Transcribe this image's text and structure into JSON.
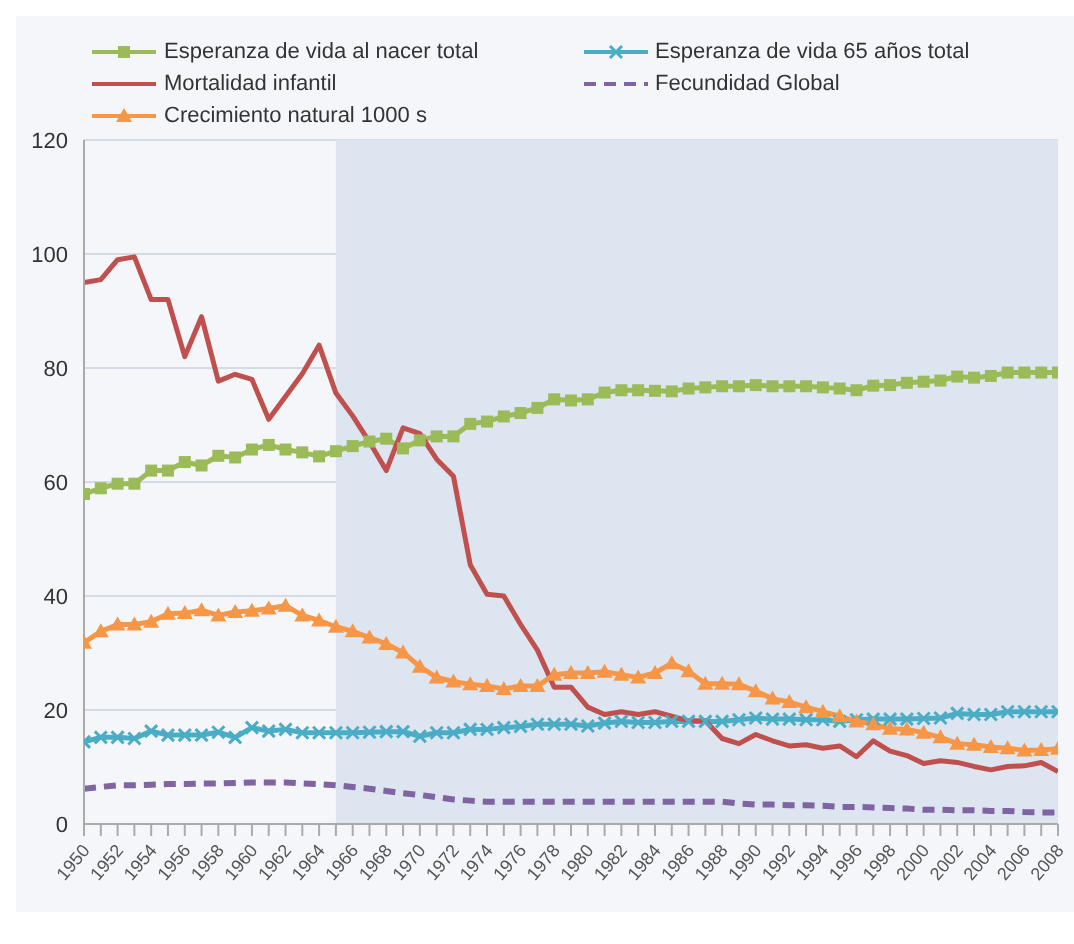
{
  "chart_data": {
    "type": "line",
    "x": [
      1950,
      1951,
      1952,
      1953,
      1954,
      1955,
      1956,
      1957,
      1958,
      1959,
      1960,
      1961,
      1962,
      1963,
      1964,
      1965,
      1966,
      1967,
      1968,
      1969,
      1970,
      1971,
      1972,
      1973,
      1974,
      1975,
      1976,
      1977,
      1978,
      1979,
      1980,
      1981,
      1982,
      1983,
      1984,
      1985,
      1986,
      1987,
      1988,
      1989,
      1990,
      1991,
      1992,
      1993,
      1994,
      1995,
      1996,
      1997,
      1998,
      1999,
      2000,
      2001,
      2002,
      2003,
      2004,
      2005,
      2006,
      2007,
      2008
    ],
    "series": [
      {
        "name": "Esperanza de vida al nacer total",
        "color": "#9bbb59",
        "marker": "square",
        "values": [
          57.9,
          58.9,
          59.7,
          59.7,
          62,
          62,
          63.5,
          62.9,
          64.6,
          64.3,
          65.7,
          66.5,
          65.7,
          65.2,
          64.5,
          65.4,
          66.3,
          67.1,
          67.6,
          65.9,
          67.3,
          68,
          68,
          70.2,
          70.6,
          71.5,
          72.1,
          73,
          74.5,
          74.3,
          74.5,
          75.7,
          76.1,
          76.1,
          76,
          75.9,
          76.4,
          76.6,
          76.8,
          76.8,
          77,
          76.8,
          76.8,
          76.8,
          76.6,
          76.4,
          76.1,
          76.9,
          77,
          77.4,
          77.6,
          77.8,
          78.5,
          78.3,
          78.6,
          79.2,
          79.2,
          79.2,
          79.2
        ]
      },
      {
        "name": "Esperanza de vida 65 años total",
        "color": "#4bacc6",
        "marker": "cross",
        "values": [
          14.4,
          15.2,
          15.2,
          15,
          16.3,
          15.6,
          15.6,
          15.6,
          16.1,
          15.2,
          16.9,
          16.3,
          16.6,
          16,
          16,
          16,
          16,
          16.1,
          16.2,
          16.2,
          15.4,
          16,
          16,
          16.6,
          16.6,
          16.9,
          17.1,
          17.5,
          17.5,
          17.5,
          17.2,
          17.7,
          18,
          17.8,
          17.8,
          18,
          18,
          18,
          18,
          18.3,
          18.6,
          18.4,
          18.4,
          18.3,
          18.3,
          18,
          18.3,
          18.4,
          18.4,
          18.4,
          18.5,
          18.6,
          19.4,
          19.2,
          19.2,
          19.7,
          19.7,
          19.7,
          19.7
        ]
      },
      {
        "name": "Mortalidad infantil",
        "color": "#c0504d",
        "marker": "none",
        "values": [
          95,
          95.5,
          99,
          99.5,
          92,
          92,
          82,
          89,
          77.7,
          78.9,
          78,
          71,
          75,
          79,
          84,
          75.6,
          71.6,
          67,
          62,
          69.5,
          68.5,
          64,
          61,
          45.5,
          40.3,
          40,
          35,
          30.5,
          24,
          24,
          20.5,
          19.2,
          19.7,
          19.2,
          19.7,
          18.9,
          18.1,
          18.1,
          15,
          14.1,
          15.7,
          14.6,
          13.7,
          13.9,
          13.3,
          13.7,
          11.8,
          14.6,
          12.8,
          12,
          10.6,
          11.1,
          10.8,
          10.1,
          9.5,
          10.1,
          10.2,
          10.8,
          9.2
        ]
      },
      {
        "name": "Fecundidad Global",
        "color": "#8064a2",
        "marker": "none",
        "line_style": "dashed",
        "values": [
          6.2,
          6.5,
          6.8,
          6.8,
          6.9,
          7,
          7,
          7.1,
          7.1,
          7.2,
          7.3,
          7.3,
          7.3,
          7.1,
          7,
          6.8,
          6.5,
          6.2,
          5.8,
          5.4,
          5.1,
          4.7,
          4.3,
          4.1,
          3.9,
          3.9,
          3.9,
          3.9,
          3.9,
          3.9,
          3.9,
          3.9,
          3.9,
          3.9,
          3.9,
          3.9,
          3.9,
          3.9,
          3.9,
          3.6,
          3.4,
          3.4,
          3.3,
          3.3,
          3.2,
          3,
          3,
          2.9,
          2.8,
          2.7,
          2.5,
          2.5,
          2.4,
          2.4,
          2.3,
          2.3,
          2.1,
          2,
          2
        ]
      },
      {
        "name": "Crecimiento natural 1000 s",
        "color": "#f79646",
        "marker": "triangle",
        "values": [
          31.8,
          33.8,
          35,
          35,
          35.5,
          36.9,
          37,
          37.5,
          36.6,
          37.2,
          37.4,
          37.8,
          38.3,
          36.6,
          35.7,
          34.6,
          33.8,
          32.7,
          31.6,
          30.1,
          27.6,
          25.7,
          25,
          24.5,
          24.2,
          23.7,
          24.2,
          24.2,
          26.2,
          26.5,
          26.5,
          26.7,
          26.2,
          25.7,
          26.5,
          28.2,
          26.8,
          24.6,
          24.6,
          24.5,
          23.3,
          22,
          21.4,
          20.5,
          19.7,
          18.9,
          18,
          17.5,
          16.7,
          16.6,
          16,
          15.2,
          14.1,
          13.9,
          13.5,
          13.3,
          12.9,
          13,
          13.2
        ]
      }
    ],
    "xlim": [
      1950,
      2008
    ],
    "xticks": [
      1950,
      {
        "value": 1951,
        "label": null
      },
      1952,
      {
        "value": 1953,
        "label": null
      },
      1954,
      {
        "value": 1955,
        "label": null
      },
      1956,
      {
        "value": 1957,
        "label": null
      },
      1958,
      {
        "value": 1959,
        "label": null
      },
      1960,
      {
        "value": 1961,
        "label": null
      },
      1962,
      {
        "value": 1963,
        "label": null
      },
      1964,
      {
        "value": 1965,
        "label": null
      },
      1966,
      {
        "value": 1967,
        "label": null
      },
      1968,
      {
        "value": 1969,
        "label": null
      },
      1970,
      {
        "value": 1971,
        "label": null
      },
      1972,
      {
        "value": 1973,
        "label": null
      },
      1974,
      {
        "value": 1975,
        "label": null
      },
      1976,
      {
        "value": 1977,
        "label": null
      },
      1978,
      {
        "value": 1979,
        "label": null
      },
      1980,
      {
        "value": 1981,
        "label": null
      },
      1982,
      {
        "value": 1983,
        "label": null
      },
      1984,
      {
        "value": 1985,
        "label": null
      },
      1986,
      {
        "value": 1987,
        "label": null
      },
      1988,
      {
        "value": 1989,
        "label": null
      },
      1990,
      {
        "value": 1991,
        "label": null
      },
      1992,
      {
        "value": 1993,
        "label": null
      },
      1994,
      {
        "value": 1995,
        "label": null
      },
      1996,
      {
        "value": 1997,
        "label": null
      },
      1998,
      {
        "value": 1999,
        "label": null
      },
      2000,
      {
        "value": 2001,
        "label": null
      },
      2002,
      {
        "value": 2003,
        "label": null
      },
      2004,
      {
        "value": 2005,
        "label": null
      },
      2006,
      {
        "value": 2007,
        "label": null
      },
      2008
    ],
    "ylim": [
      0,
      120
    ],
    "yticks": [
      0,
      20,
      40,
      60,
      80,
      100,
      120
    ],
    "grid": "y",
    "legend": "top",
    "bands": [
      {
        "axis": "x",
        "from": 1965,
        "to": 2008,
        "color": "#dde5f0"
      }
    ]
  }
}
